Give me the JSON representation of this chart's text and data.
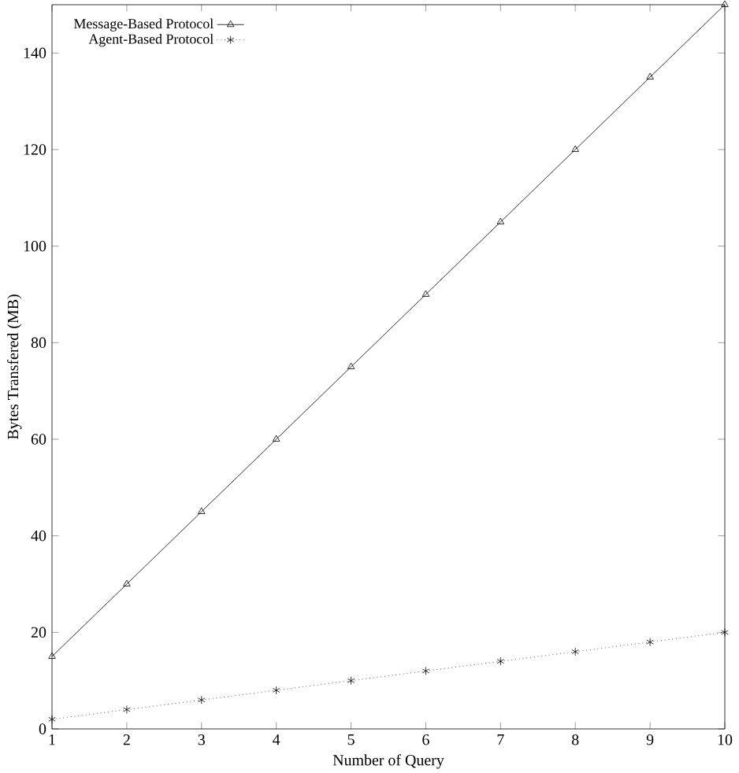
{
  "chart_data": {
    "type": "line",
    "xlabel": "Number of Query",
    "ylabel": "Bytes Transfered (MB)",
    "x": [
      1,
      2,
      3,
      4,
      5,
      6,
      7,
      8,
      9,
      10
    ],
    "xlim": [
      1,
      10
    ],
    "xticks": [
      1,
      2,
      3,
      4,
      5,
      6,
      7,
      8,
      9,
      10
    ],
    "ylim": [
      0,
      150
    ],
    "yticks": [
      0,
      20,
      40,
      60,
      80,
      100,
      120,
      140
    ],
    "legend": "top left",
    "series": [
      {
        "name": "Message-Based Protocol",
        "color": "#000000",
        "marker": "triangle",
        "line_style": "solid",
        "values": [
          15,
          30,
          45,
          60,
          75,
          90,
          105,
          120,
          135,
          150
        ]
      },
      {
        "name": "Agent-Based Protocol",
        "color": "#000000",
        "marker": "cross",
        "line_style": "dotted",
        "values": [
          2,
          4,
          6,
          8,
          10,
          12,
          14,
          16,
          18,
          20
        ]
      }
    ]
  }
}
